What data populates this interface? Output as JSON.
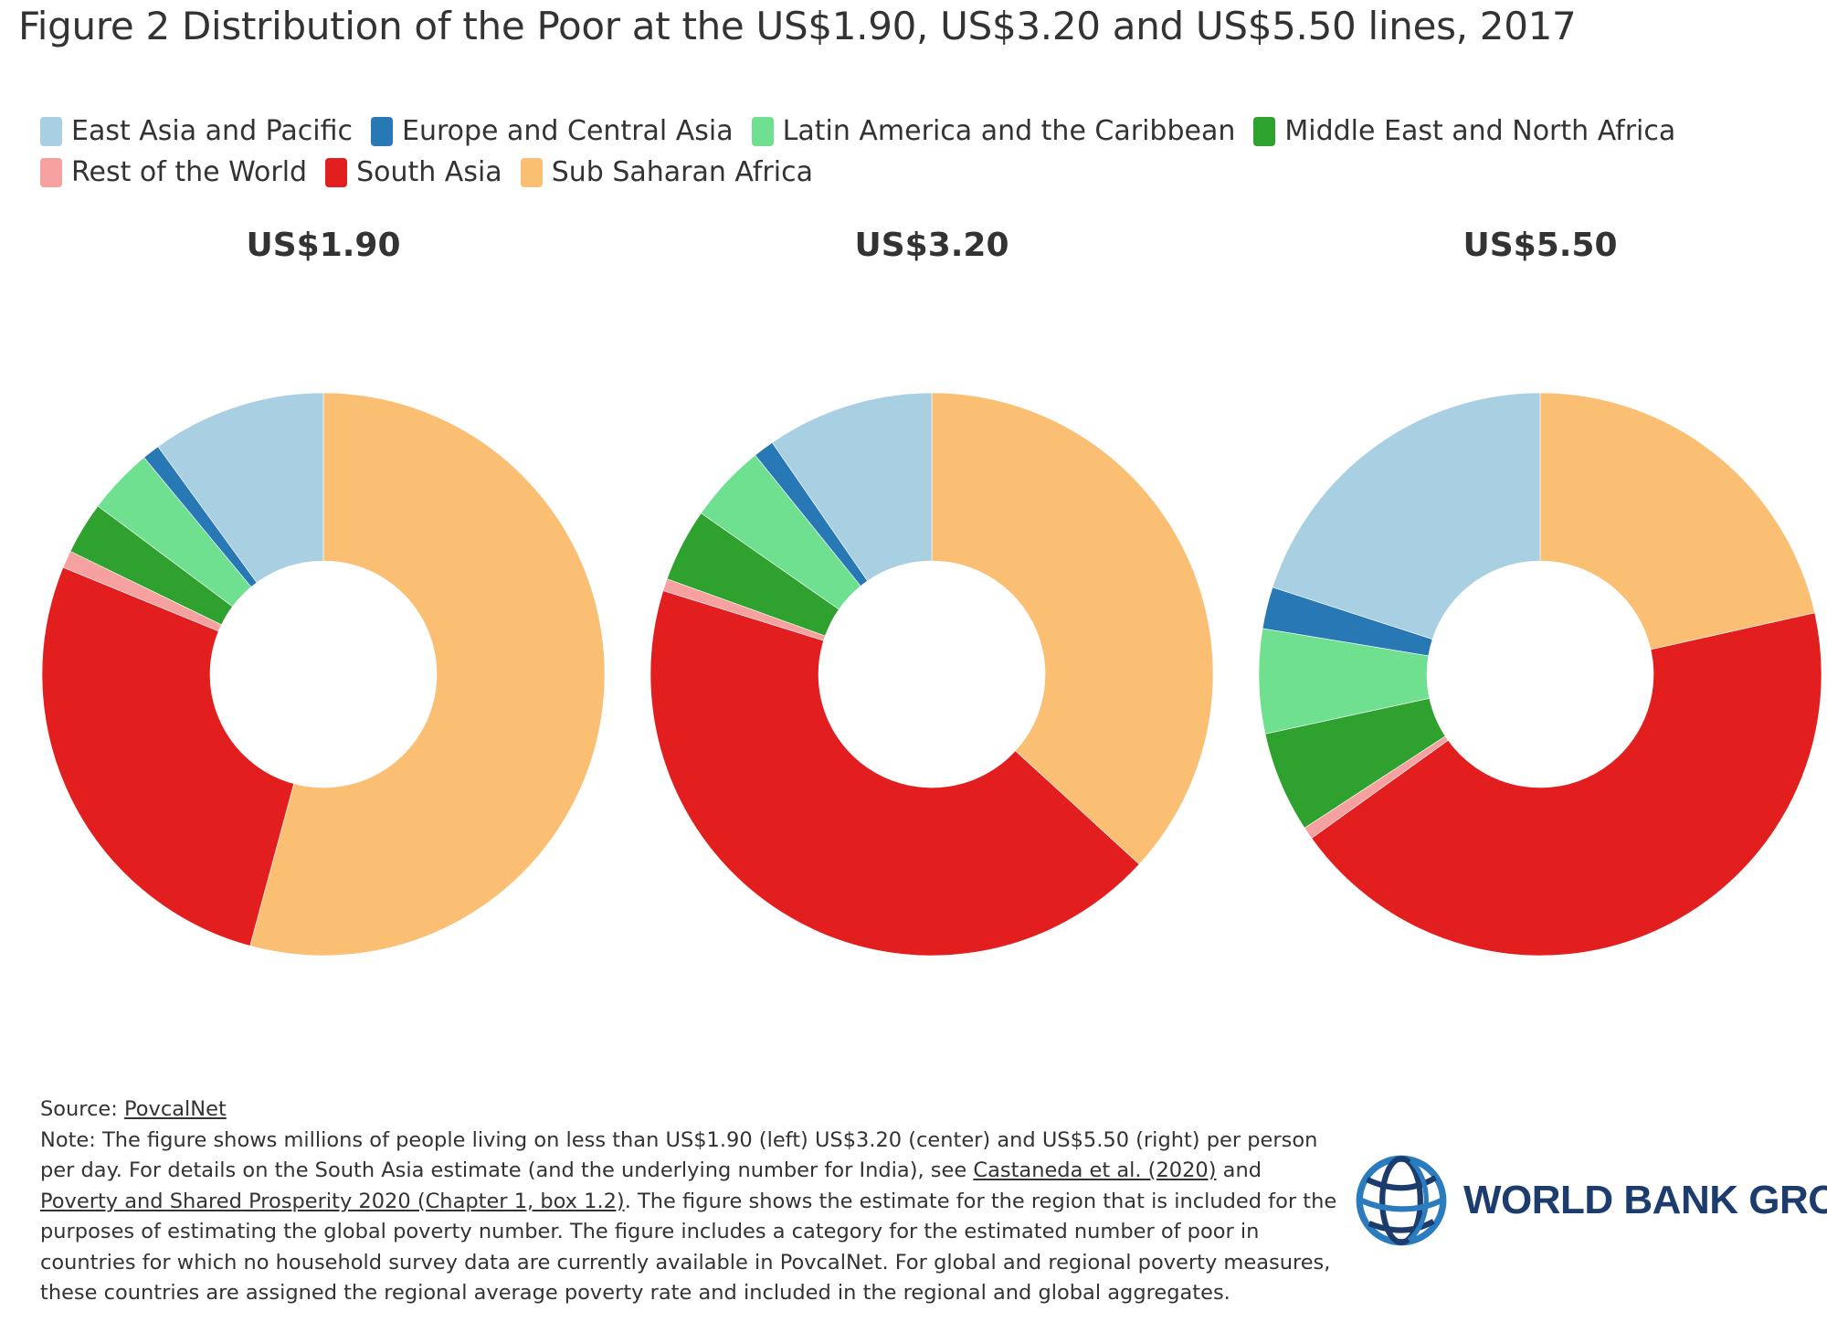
{
  "title": "Figure 2 Distribution of the Poor at the US$1.90, US$3.20 and US$5.50 lines, 2017",
  "legend": [
    {
      "label": "East Asia and Pacific",
      "color": "#a9cfe3"
    },
    {
      "label": "Europe and Central Asia",
      "color": "#2878b5"
    },
    {
      "label": "Latin America and the Caribbean",
      "color": "#6ee08f"
    },
    {
      "label": "Middle East and North Africa",
      "color": "#2fa12e"
    },
    {
      "label": "Rest of the World",
      "color": "#f7a0a0"
    },
    {
      "label": "South Asia",
      "color": "#e21e1e"
    },
    {
      "label": "Sub Saharan Africa",
      "color": "#fbbf74"
    }
  ],
  "chart_data": [
    {
      "type": "pie",
      "title": "US$1.90",
      "unit": "millions of people",
      "series": [
        {
          "name": "Sub Saharan Africa",
          "value": 54.2
        },
        {
          "name": "South Asia",
          "value": 27.0
        },
        {
          "name": "Rest of the World",
          "value": 1.0
        },
        {
          "name": "Middle East and North Africa",
          "value": 3.0
        },
        {
          "name": "Latin America and the Caribbean",
          "value": 3.8
        },
        {
          "name": "Europe and Central Asia",
          "value": 1.0
        },
        {
          "name": "East Asia and Pacific",
          "value": 10.0
        }
      ],
      "donut": true
    },
    {
      "type": "pie",
      "title": "US$3.20",
      "unit": "millions of people",
      "series": [
        {
          "name": "Sub Saharan Africa",
          "value": 36.8
        },
        {
          "name": "South Asia",
          "value": 43.0
        },
        {
          "name": "Rest of the World",
          "value": 0.7
        },
        {
          "name": "Middle East and North Africa",
          "value": 4.2
        },
        {
          "name": "Latin America and the Caribbean",
          "value": 4.5
        },
        {
          "name": "Europe and Central Asia",
          "value": 1.2
        },
        {
          "name": "East Asia and Pacific",
          "value": 9.6
        }
      ],
      "donut": true
    },
    {
      "type": "pie",
      "title": "US$5.50",
      "unit": "millions of people",
      "series": [
        {
          "name": "Sub Saharan Africa",
          "value": 21.5
        },
        {
          "name": "South Asia",
          "value": 43.6
        },
        {
          "name": "Rest of the World",
          "value": 0.7
        },
        {
          "name": "Middle East and North Africa",
          "value": 5.8
        },
        {
          "name": "Latin America and the Caribbean",
          "value": 6.0
        },
        {
          "name": "Europe and Central Asia",
          "value": 2.4
        },
        {
          "name": "East Asia and Pacific",
          "value": 20.0
        }
      ],
      "donut": true
    }
  ],
  "footer": {
    "source_label": "Source: ",
    "source_link": "PovcalNet",
    "note_1": "Note: The figure shows millions of people living on less than US$1.90 (left) US$3.20 (center) and US$5.50 (right) per person per day. For details on the South Asia estimate (and the underlying number for India), see ",
    "link_1": "Castaneda et al. (2020)",
    "and": " and ",
    "link_2": "Poverty and Shared Prosperity 2020 (Chapter 1, box 1.2)",
    "note_2": ". The figure shows the estimate for the region that is included for the purposes of estimating the global poverty number. The figure includes a category for the estimated number of poor in countries for which no household survey data are currently available in PovcalNet. For global and regional poverty measures, these countries are assigned the regional average poverty rate and included in the regional and global aggregates."
  },
  "logo": {
    "text": "WORLD BANK GROUP",
    "icon": "globe-icon",
    "color": "#1d3c6e"
  }
}
